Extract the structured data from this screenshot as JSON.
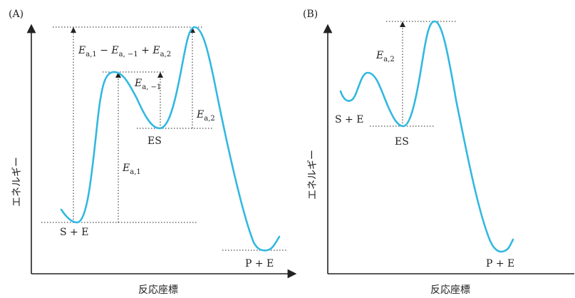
{
  "panel_a": {
    "label": "(A)",
    "ylabel": "エネルギー",
    "xlabel": "反応座標",
    "state_se": "S + E",
    "state_es": "ES",
    "state_pe": "P + E",
    "ea1_sym": "E",
    "ea1_sub": "a,1",
    "eam1_sym": "E",
    "eam1_sub": "a, −1",
    "ea2_sym": "E",
    "ea2_sub": "a,2",
    "combo_e1": "E",
    "combo_s1": "a,1",
    "combo_op1": " − ",
    "combo_e2": "E",
    "combo_s2": "a, −1",
    "combo_op2": " + ",
    "combo_e3": "E",
    "combo_s3": "a,2"
  },
  "panel_b": {
    "label": "(B)",
    "ylabel": "エネルギー",
    "xlabel": "反応座標",
    "state_se": "S + E",
    "state_es": "ES",
    "state_pe": "P + E",
    "ea2_sym": "E",
    "ea2_sub": "a,2"
  },
  "colors": {
    "curve": "#33b8e0",
    "ink": "#222222"
  }
}
